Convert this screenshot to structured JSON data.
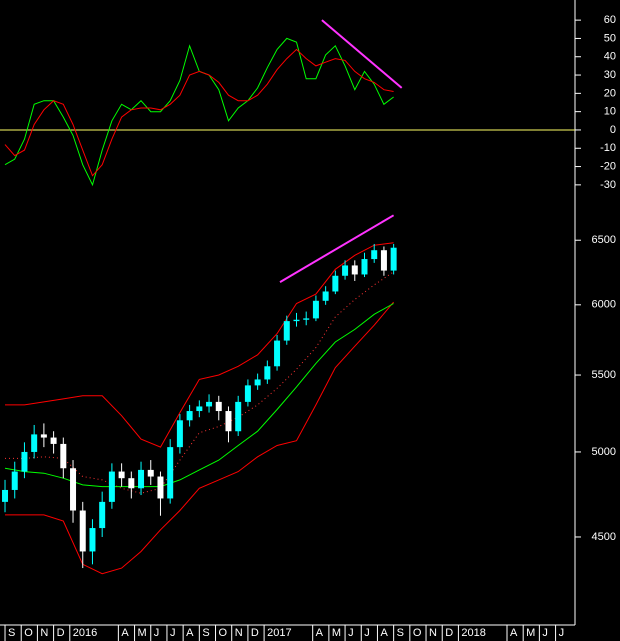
{
  "chart_data": [
    {
      "type": "line",
      "x": [
        0,
        0.6,
        1.2,
        1.8,
        2.4,
        3,
        3.6,
        4.2,
        4.8,
        5.4,
        6,
        6.6,
        7.2,
        7.8,
        8.4,
        9,
        9.6,
        10.2,
        10.8,
        11.4,
        12,
        12.6,
        13.2,
        13.8,
        14.4,
        15,
        15.6,
        16.2,
        16.8,
        17.4,
        18,
        18.6,
        19.2,
        19.8,
        20.4,
        21,
        21.6,
        22.2,
        22.8,
        23.4,
        24
      ],
      "series": [
        {
          "color": "#00ff00",
          "values": [
            -19,
            -16,
            -5,
            14,
            16,
            16,
            7,
            -3,
            -19,
            -30,
            -11,
            5,
            14,
            11,
            16,
            10,
            10,
            16,
            27,
            46,
            32,
            30,
            22,
            5,
            12,
            16,
            23,
            34,
            44,
            50,
            48,
            28,
            28,
            41,
            46,
            35,
            22,
            32,
            25,
            14,
            18
          ]
        },
        {
          "color": "#ff0000",
          "values": [
            -8,
            -14,
            -11,
            3,
            11,
            16,
            14,
            3,
            -11,
            -25,
            -19,
            -5,
            7,
            11,
            12,
            12,
            11,
            14,
            19,
            30,
            32,
            30,
            26,
            19,
            16,
            16,
            19,
            25,
            33,
            39,
            44,
            39,
            35,
            37,
            39,
            38,
            32,
            28,
            26,
            22,
            21
          ]
        }
      ],
      "hline": 0,
      "hline_color": "#ffff66",
      "trendlines": [
        {
          "x": [
            19.57,
            24.5
          ],
          "values": [
            60,
            23
          ],
          "color": "#ff33ff"
        }
      ],
      "xlim": [
        -0.31,
        35.2
      ],
      "ylim": [
        -41,
        71
      ],
      "yticks": [
        60,
        50,
        40,
        30,
        20,
        10,
        0,
        -10,
        -20,
        -30
      ]
    },
    {
      "type": "candlestick",
      "x": [
        0,
        0.6,
        1.2,
        1.8,
        2.4,
        3,
        3.6,
        4.2,
        4.8,
        5.4,
        6,
        6.6,
        7.2,
        7.8,
        8.4,
        9,
        9.6,
        10.2,
        10.8,
        11.4,
        12,
        12.6,
        13.2,
        13.8,
        14.4,
        15,
        15.6,
        16.2,
        16.8,
        17.4,
        18,
        18.6,
        19.2,
        19.8,
        20.4,
        21,
        21.6,
        22.2,
        22.8,
        23.4,
        24
      ],
      "open": [
        4700,
        4770,
        4880,
        5000,
        5110,
        5090,
        5050,
        4900,
        4650,
        4420,
        4550,
        4700,
        4880,
        4840,
        4780,
        4890,
        4850,
        4720,
        5030,
        5200,
        5260,
        5290,
        5320,
        5260,
        5130,
        5320,
        5430,
        5470,
        5560,
        5740,
        5880,
        5890,
        5900,
        6030,
        6100,
        6220,
        6300,
        6230,
        6350,
        6420,
        6260
      ],
      "high": [
        4830,
        4940,
        5060,
        5170,
        5180,
        5130,
        5090,
        4950,
        4700,
        4600,
        4760,
        4930,
        4930,
        4880,
        4940,
        4950,
        4880,
        5080,
        5240,
        5300,
        5330,
        5370,
        5360,
        5290,
        5360,
        5470,
        5510,
        5600,
        5780,
        5920,
        5940,
        5950,
        6070,
        6140,
        6260,
        6340,
        6340,
        6400,
        6470,
        6450,
        6470
      ],
      "low": [
        4640,
        4720,
        4840,
        4960,
        5030,
        4990,
        4840,
        4580,
        4330,
        4350,
        4500,
        4660,
        4790,
        4720,
        4740,
        4800,
        4620,
        4690,
        4990,
        5160,
        5220,
        5250,
        5200,
        5060,
        5100,
        5290,
        5400,
        5440,
        5530,
        5710,
        5840,
        5850,
        5880,
        6000,
        6080,
        6190,
        6180,
        6210,
        6320,
        6220,
        6230
      ],
      "close": [
        4770,
        4880,
        5000,
        5110,
        5090,
        5050,
        4900,
        4650,
        4420,
        4550,
        4700,
        4880,
        4840,
        4780,
        4890,
        4850,
        4720,
        5030,
        5200,
        5260,
        5290,
        5320,
        5260,
        5130,
        5320,
        5430,
        5470,
        5560,
        5740,
        5880,
        5890,
        5900,
        6030,
        6100,
        6220,
        6300,
        6230,
        6350,
        6420,
        6260,
        6440
      ],
      "up_color": "#00ffff",
      "down_color": "#ffffff",
      "overlays": [
        {
          "color": "#ff0000",
          "x": [
            0,
            1.2,
            2.4,
            3.6,
            4.8,
            6,
            7.2,
            8.4,
            9.6,
            10.8,
            12,
            13.2,
            14.4,
            15.6,
            16.8,
            18,
            19.2,
            20.4,
            21.6,
            22.8,
            24
          ],
          "values": [
            5300,
            5300,
            5320,
            5340,
            5360,
            5360,
            5230,
            5080,
            5030,
            5250,
            5470,
            5500,
            5560,
            5640,
            5790,
            6010,
            6080,
            6270,
            6380,
            6460,
            6480
          ]
        },
        {
          "color": "#ff0000",
          "x": [
            0,
            1.2,
            2.4,
            3.6,
            4.8,
            6,
            7.2,
            8.4,
            9.6,
            10.8,
            12,
            13.2,
            14.4,
            15.6,
            16.8,
            18,
            19.2,
            20.4,
            21.6,
            22.8,
            24
          ],
          "values": [
            4625,
            4625,
            4625,
            4590,
            4350,
            4300,
            4330,
            4420,
            4540,
            4650,
            4780,
            4830,
            4880,
            4970,
            5040,
            5070,
            5300,
            5550,
            5700,
            5850,
            6020
          ]
        },
        {
          "color": "#ff3333",
          "dash": true,
          "x": [
            0,
            1.2,
            2.4,
            3.6,
            4.8,
            6,
            7.2,
            8.4,
            9.6,
            10.8,
            12,
            13.2,
            14.4,
            15.6,
            16.8,
            18,
            19.2,
            20.4,
            21.6,
            22.8,
            24
          ],
          "values": [
            4960,
            4960,
            4970,
            4960,
            4850,
            4830,
            4780,
            4750,
            4780,
            4950,
            5120,
            5160,
            5220,
            5300,
            5410,
            5540,
            5690,
            5910,
            6040,
            6150,
            6250
          ]
        },
        {
          "color": "#00ff00",
          "x": [
            0,
            1.2,
            2.4,
            3.6,
            4.8,
            6,
            7.2,
            8.4,
            9.6,
            10.8,
            12,
            13.2,
            14.4,
            15.6,
            16.8,
            18,
            19.2,
            20.4,
            21.6,
            22.8,
            24
          ],
          "values": [
            4900,
            4880,
            4870,
            4840,
            4800,
            4790,
            4790,
            4790,
            4790,
            4830,
            4890,
            4950,
            5040,
            5130,
            5270,
            5420,
            5580,
            5730,
            5820,
            5930,
            6010
          ]
        }
      ],
      "trendlines": [
        {
          "x": [
            16.98,
            24.0
          ],
          "values": [
            6171,
            6704
          ],
          "color": "#ff33ff"
        }
      ],
      "xlim": [
        -0.31,
        35.2
      ],
      "xticks": [
        {
          "value": 0,
          "label": "S"
        },
        {
          "value": 1,
          "label": "O"
        },
        {
          "value": 2,
          "label": "N"
        },
        {
          "value": 3,
          "label": "D"
        },
        {
          "value": 4,
          "label": "2016"
        },
        {
          "value": 7,
          "label": "A"
        },
        {
          "value": 8,
          "label": "M"
        },
        {
          "value": 9,
          "label": "J"
        },
        {
          "value": 10,
          "label": "J"
        },
        {
          "value": 11,
          "label": "A"
        },
        {
          "value": 12,
          "label": "S"
        },
        {
          "value": 13,
          "label": "O"
        },
        {
          "value": 14,
          "label": "N"
        },
        {
          "value": 15,
          "label": "D"
        },
        {
          "value": 16,
          "label": "2017"
        },
        {
          "value": 19,
          "label": "A"
        },
        {
          "value": 20,
          "label": "M"
        },
        {
          "value": 21,
          "label": "J"
        },
        {
          "value": 22,
          "label": "J"
        },
        {
          "value": 23,
          "label": "A"
        },
        {
          "value": 24,
          "label": "S"
        },
        {
          "value": 25,
          "label": "O"
        },
        {
          "value": 26,
          "label": "N"
        },
        {
          "value": 27,
          "label": "D"
        },
        {
          "value": 28,
          "label": "2018"
        },
        {
          "value": 31,
          "label": "A"
        },
        {
          "value": 32,
          "label": "M"
        },
        {
          "value": 33,
          "label": "J"
        },
        {
          "value": 34,
          "label": "J"
        }
      ],
      "ylim": [
        4050,
        6790
      ],
      "log": true,
      "yticks": [
        6500,
        6000,
        5500,
        5000,
        4500
      ]
    }
  ]
}
